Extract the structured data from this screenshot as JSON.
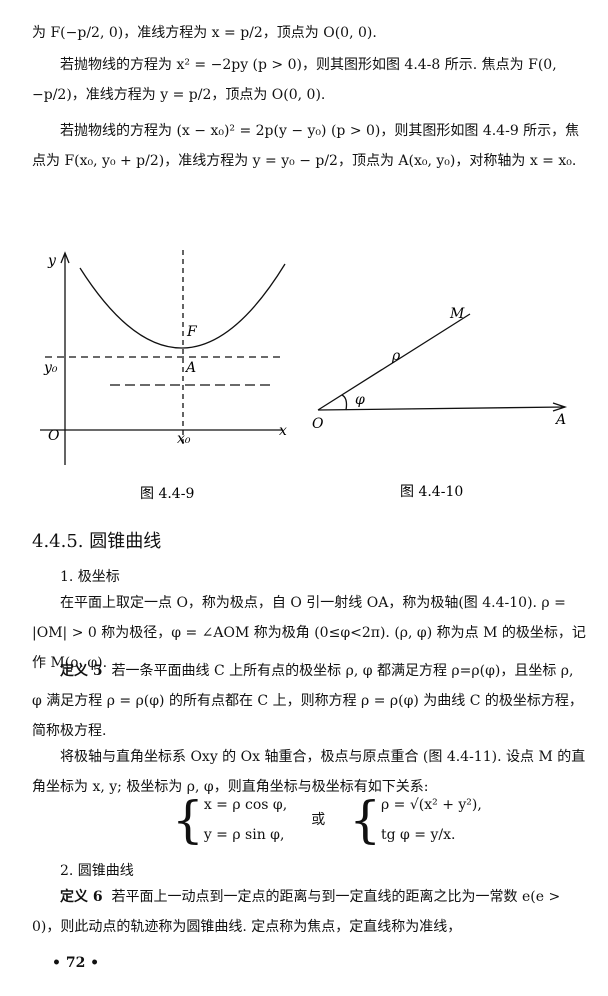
{
  "paragraphs": [
    "为 F(−p/2, 0)，准线方程为 x = p/2，顶点为 O(0, 0).",
    "若抛物线的方程为 x² = −2py (p > 0)，则其图形如图 4.4-8 所示. 焦点为 F(0, −p/2)，准线方程为 y = p/2，顶点为 O(0, 0).",
    "若抛物线的方程为 (x − x₀)² = 2p(y − y₀) (p > 0)，则其图形如图 4.4-9 所示，焦点为 F(x₀, y₀ + p/2)，准线方程为 y = y₀ − p/2，顶点为 A(x₀, y₀)，对称轴为 x = x₀."
  ],
  "figure_1": {
    "labels": {
      "y": "y",
      "x": "x",
      "origin": "O",
      "focus": "F",
      "vertex": "A",
      "y0": "y₀",
      "x0": "x₀"
    },
    "caption": "图  4.4-9"
  },
  "figure_2": {
    "labels": {
      "pole": "O",
      "axis": "A",
      "point": "M",
      "rho": "ρ",
      "phi": "φ"
    },
    "caption": "图  4.4-10"
  },
  "section": {
    "heading": "4.4.5. 圆锥曲线",
    "sub_1": "1. 极坐标",
    "polar_text": "在平面上取定一点 O，称为极点，自 O 引一射线 OA，称为极轴(图 4.4-10). ρ = |OM| > 0 称为极径，φ = ∠AOM 称为极角 (0≤φ<2π). (ρ, φ) 称为点 M 的极坐标，记作 M(ρ, φ).",
    "def_5": {
      "label": "定义 5",
      "text": "若一条平面曲线 C 上所有点的极坐标 ρ, φ 都满足方程 ρ=ρ(φ)，且坐标 ρ, φ 满足方程 ρ = ρ(φ) 的所有点都在 C 上，则称方程 ρ = ρ(φ) 为曲线 C 的极坐标方程，简称极方程."
    },
    "relation_text": "将极轴与直角坐标系 Oxy 的 Ox 轴重合，极点与原点重合 (图 4.4-11). 设点 M 的直角坐标为 x, y; 极坐标为 ρ, φ，则直角坐标与极坐标有如下关系:",
    "formula": {
      "left": [
        "x = ρ cos φ,",
        "y = ρ sin φ,"
      ],
      "or": "或",
      "right": [
        "ρ = √(x² + y²),",
        "tg φ = y/x."
      ]
    },
    "sub_2": "2. 圆锥曲线",
    "def_6": {
      "label": "定义 6",
      "text": "若平面上一动点到一定点的距离与到一定直线的距离之比为一常数 e(e > 0)，则此动点的轨迹称为圆锥曲线. 定点称为焦点，定直线称为准线，"
    }
  },
  "page_number": "• 72 •"
}
